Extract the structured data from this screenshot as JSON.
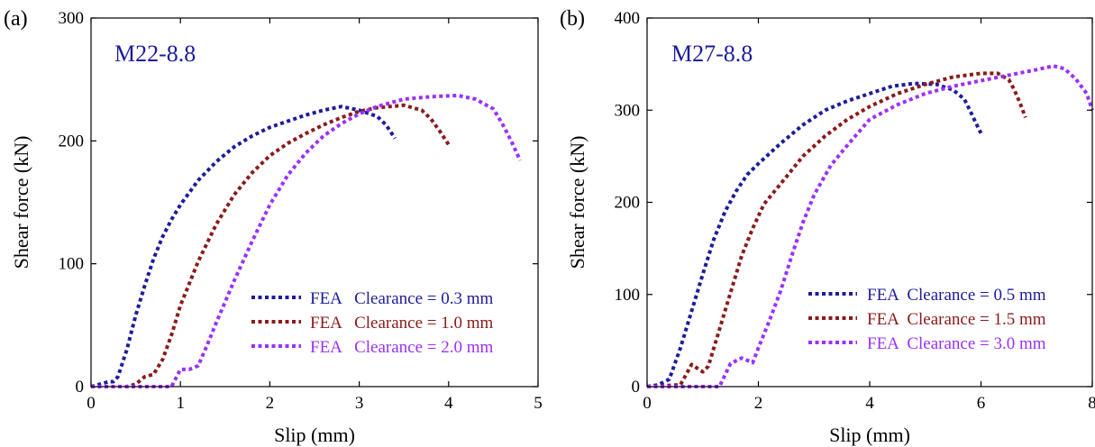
{
  "chart_data": [
    {
      "type": "line",
      "panel_label": "(a)",
      "annotation": "M22-8.8",
      "xlabel": "Slip (mm)",
      "ylabel": "Shear force (kN)",
      "xlim": [
        0,
        5
      ],
      "ylim": [
        0,
        300
      ],
      "xticks": [
        0,
        1,
        2,
        3,
        4,
        5
      ],
      "yticks": [
        0,
        100,
        200,
        300
      ],
      "legend_position": "bottom-right",
      "series": [
        {
          "name": "FEA   Clearance = 0.3 mm",
          "color": "#1c1c9c",
          "x": [
            0.0,
            0.1,
            0.2,
            0.25,
            0.3,
            0.4,
            0.5,
            0.6,
            0.7,
            0.8,
            0.9,
            1.0,
            1.2,
            1.4,
            1.6,
            1.8,
            2.0,
            2.2,
            2.4,
            2.6,
            2.8,
            3.0,
            3.2,
            3.3,
            3.4
          ],
          "y": [
            0,
            2,
            4,
            4,
            8,
            30,
            58,
            82,
            104,
            122,
            136,
            148,
            168,
            183,
            195,
            204,
            211,
            216,
            221,
            225,
            228,
            225,
            220,
            213,
            202
          ]
        },
        {
          "name": "FEA   Clearance = 1.0 mm",
          "color": "#8b1a1a",
          "x": [
            0.0,
            0.4,
            0.5,
            0.6,
            0.7,
            0.8,
            0.9,
            1.0,
            1.2,
            1.4,
            1.6,
            1.8,
            2.0,
            2.2,
            2.4,
            2.6,
            2.8,
            3.0,
            3.2,
            3.5,
            3.7,
            3.8,
            3.9,
            4.0
          ],
          "y": [
            0,
            0,
            2,
            8,
            10,
            22,
            42,
            66,
            102,
            132,
            156,
            174,
            188,
            198,
            206,
            213,
            219,
            224,
            227,
            229,
            225,
            218,
            208,
            197
          ]
        },
        {
          "name": "FEA   Clearance = 2.0 mm",
          "color": "#9b30ff",
          "x": [
            0.0,
            0.9,
            1.0,
            1.1,
            1.2,
            1.3,
            1.4,
            1.6,
            1.8,
            2.0,
            2.2,
            2.4,
            2.6,
            2.8,
            3.0,
            3.2,
            3.5,
            3.8,
            4.1,
            4.3,
            4.5,
            4.6,
            4.7,
            4.8
          ],
          "y": [
            0,
            0,
            14,
            14,
            17,
            34,
            52,
            86,
            118,
            148,
            172,
            190,
            204,
            214,
            222,
            228,
            234,
            236,
            237,
            234,
            226,
            214,
            200,
            184
          ]
        }
      ]
    },
    {
      "type": "line",
      "panel_label": "(b)",
      "annotation": "M27-8.8",
      "xlabel": "Slip (mm)",
      "ylabel": "Shear force (kN)",
      "xlim": [
        0,
        8
      ],
      "ylim": [
        0,
        400
      ],
      "xticks": [
        0,
        2,
        4,
        6,
        8
      ],
      "yticks": [
        0,
        100,
        200,
        300,
        400
      ],
      "legend_position": "bottom-right",
      "series": [
        {
          "name": "FEA  Clearance = 0.5 mm",
          "color": "#1c1c9c",
          "x": [
            0.0,
            0.2,
            0.4,
            0.6,
            0.8,
            1.0,
            1.2,
            1.4,
            1.6,
            1.8,
            2.0,
            2.4,
            2.8,
            3.2,
            3.6,
            4.0,
            4.4,
            4.8,
            5.2,
            5.5,
            5.7,
            5.8,
            5.9,
            6.0
          ],
          "y": [
            0,
            2,
            8,
            42,
            82,
            122,
            160,
            190,
            212,
            230,
            242,
            264,
            284,
            300,
            310,
            318,
            326,
            329,
            328,
            322,
            312,
            300,
            287,
            275
          ]
        },
        {
          "name": "FEA  Clearance = 1.5 mm",
          "color": "#8b1a1a",
          "x": [
            0.0,
            0.6,
            0.8,
            1.0,
            1.1,
            1.3,
            1.5,
            1.7,
            1.9,
            2.1,
            2.4,
            2.8,
            3.2,
            3.6,
            4.0,
            4.5,
            5.0,
            5.5,
            6.0,
            6.3,
            6.5,
            6.6,
            6.7,
            6.8
          ],
          "y": [
            0,
            2,
            24,
            16,
            22,
            62,
            102,
            142,
            172,
            198,
            220,
            250,
            272,
            290,
            304,
            318,
            328,
            336,
            340,
            340,
            333,
            322,
            308,
            292
          ]
        },
        {
          "name": "FEA  Clearance = 3.0 mm",
          "color": "#9b30ff",
          "x": [
            0.0,
            1.3,
            1.5,
            1.7,
            1.9,
            2.0,
            2.2,
            2.4,
            2.6,
            2.8,
            3.0,
            3.3,
            3.6,
            4.0,
            4.5,
            5.0,
            5.5,
            6.0,
            6.5,
            7.0,
            7.3,
            7.5,
            7.7,
            7.9,
            8.0
          ],
          "y": [
            0,
            0,
            25,
            31,
            26,
            42,
            72,
            104,
            142,
            178,
            208,
            240,
            262,
            290,
            306,
            318,
            326,
            332,
            338,
            344,
            348,
            345,
            334,
            318,
            300
          ]
        }
      ]
    }
  ]
}
